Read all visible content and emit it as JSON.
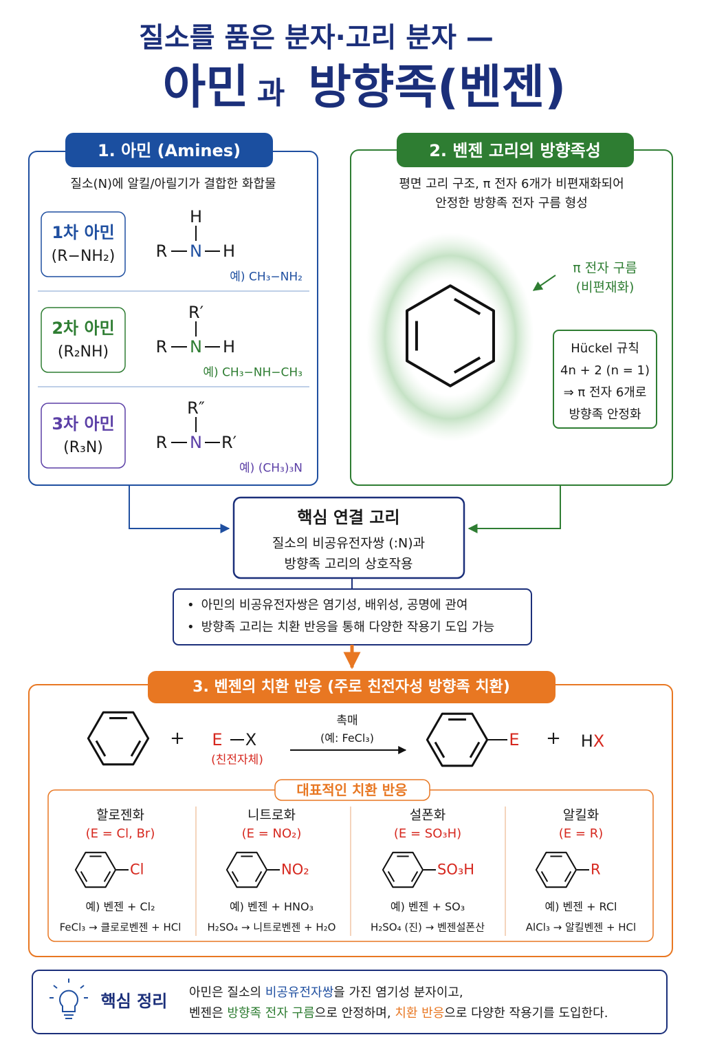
{
  "title": {
    "line1": "질소를 품은 분자·고리 분자 —",
    "main": "아민",
    "connector": "과",
    "rest": "방향족(벤젠)"
  },
  "amines": {
    "heading": "1. 아민 (Amines)",
    "description": "질소(N)에 알킬/아릴기가 결합한 화합물",
    "items": [
      {
        "name": "1차 아민",
        "formula": "(R−NH₂)",
        "top": "H",
        "left": "R",
        "center": "N",
        "right": "H",
        "example": "예) CH₃−NH₂"
      },
      {
        "name": "2차 아민",
        "formula": "(R₂NH)",
        "top": "R′",
        "left": "R",
        "center": "N",
        "right": "H",
        "example": "예) CH₃−NH−CH₃"
      },
      {
        "name": "3차 아민",
        "formula": "(R₃N)",
        "top": "R″",
        "left": "R",
        "center": "N",
        "right": "R′",
        "example": "예) (CH₃)₃N"
      }
    ]
  },
  "benzene": {
    "heading": "2. 벤젠 고리의 방향족성",
    "description": [
      "평면 고리 구조, π 전자 6개가 비편재화되어",
      "안정한 방향족 전자 구름 형성"
    ],
    "cloud_label": [
      "π 전자 구름",
      "(비편재화)"
    ],
    "huckel": [
      "Hückel 규칙",
      "4n + 2 (n = 1)",
      "⇒ π 전자 6개로",
      "방향족 안정화"
    ]
  },
  "core": {
    "title": "핵심 연결 고리",
    "lines": [
      "질소의 비공유전자쌍 (:N)과",
      "방향족 고리의 상호작용"
    ]
  },
  "notes": [
    "아민의 비공유전자쌍은 염기성, 배위성, 공명에 관여",
    "방향족 고리는 치환 반응을 통해 다양한 작용기 도입 가능"
  ],
  "substitution": {
    "heading": "3. 벤젠의 치환 반응 (주로 친전자성 방향족 치환)",
    "reaction": {
      "plus": "+",
      "electrophile": "E",
      "leaving": "X",
      "electrophile_label": "(친전자체)",
      "catalyst": "촉매",
      "catalyst_example": "(예: FeCl₃)",
      "product_group": "E",
      "byproduct": [
        "H",
        "X"
      ]
    },
    "examples": {
      "heading": "대표적인 치환 반응",
      "items": [
        {
          "name": "할로젠화",
          "e": "(E = Cl, Br)",
          "group": "Cl",
          "reagents": "예) 벤젠 + Cl₂",
          "result": "FeCl₃ → 클로로벤젠 + HCl"
        },
        {
          "name": "니트로화",
          "e": "(E = NO₂)",
          "group": "NO₂",
          "reagents": "예) 벤젠 + HNO₃",
          "result": "H₂SO₄ → 니트로벤젠 + H₂O"
        },
        {
          "name": "설폰화",
          "e": "(E = SO₃H)",
          "group": "SO₃H",
          "reagents": "예) 벤젠 + SO₃",
          "result": "H₂SO₄ (진) → 벤젠설폰산"
        },
        {
          "name": "알킬화",
          "e": "(E = R)",
          "group": "R",
          "reagents": "예) 벤젠 + RCl",
          "result": "AlCl₃ → 알킬벤젠 + HCl"
        }
      ]
    }
  },
  "summary": {
    "title": "핵심 정리",
    "line1": [
      "아민은 질소의 ",
      "비공유전자쌍",
      "을 가진 염기성 분자이고,"
    ],
    "line2": [
      "벤젠은 ",
      "방향족 전자 구름",
      "으로 안정하며, ",
      "치환 반응",
      "으로 다양한 작용기를 도입한다."
    ]
  }
}
